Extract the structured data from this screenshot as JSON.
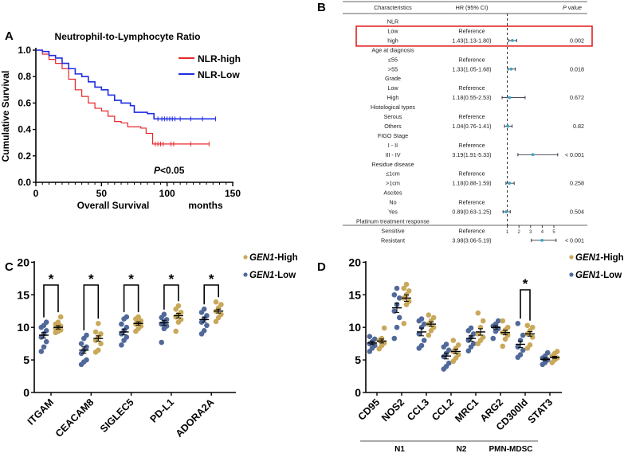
{
  "panels": {
    "a": "A",
    "b": "B",
    "c": "C",
    "d": "D"
  },
  "colors": {
    "nlr_high": "#e8262a",
    "nlr_low": "#1f2de0",
    "gen1_high": "#c9a85a",
    "gen1_low": "#51699a",
    "forest_point": "#3aa6c4",
    "highlight_box": "#e02020"
  },
  "chart_data": [
    {
      "type": "line",
      "subtype": "kaplan-meier",
      "title": "Neutrophil-to-Lymphocyte Ratio",
      "xlabel": "Overall Survival",
      "xunit": "months",
      "ylabel": "Cumulative Survival",
      "xlim": [
        0,
        150
      ],
      "ylim": [
        0,
        1.0
      ],
      "xticks": [
        "0",
        "50",
        "100",
        "150"
      ],
      "yticks": [
        "0.0",
        "0.2",
        "0.4",
        "0.6",
        "0.8",
        "1.0"
      ],
      "legend_position": "top-right",
      "annotation": {
        "italic": "P",
        "rest": "<0.05"
      },
      "series": [
        {
          "name": "NLR-high",
          "steps": [
            [
              0,
              1.0
            ],
            [
              5,
              0.97
            ],
            [
              10,
              0.93
            ],
            [
              15,
              0.9
            ],
            [
              20,
              0.86
            ],
            [
              25,
              0.78
            ],
            [
              30,
              0.7
            ],
            [
              35,
              0.65
            ],
            [
              40,
              0.6
            ],
            [
              45,
              0.56
            ],
            [
              50,
              0.54
            ],
            [
              55,
              0.5
            ],
            [
              60,
              0.46
            ],
            [
              65,
              0.45
            ],
            [
              70,
              0.42
            ],
            [
              80,
              0.41
            ],
            [
              84,
              0.37
            ],
            [
              89,
              0.29
            ],
            [
              132,
              0.29
            ]
          ],
          "censored": [
            91,
            93,
            95,
            97,
            103,
            105,
            118,
            132
          ]
        },
        {
          "name": "NLR-Low",
          "steps": [
            [
              0,
              1.0
            ],
            [
              5,
              0.99
            ],
            [
              10,
              0.96
            ],
            [
              15,
              0.94
            ],
            [
              20,
              0.9
            ],
            [
              25,
              0.86
            ],
            [
              30,
              0.82
            ],
            [
              35,
              0.8
            ],
            [
              40,
              0.76
            ],
            [
              45,
              0.72
            ],
            [
              50,
              0.7
            ],
            [
              55,
              0.66
            ],
            [
              60,
              0.62
            ],
            [
              65,
              0.6
            ],
            [
              72,
              0.58
            ],
            [
              75,
              0.53
            ],
            [
              85,
              0.52
            ],
            [
              90,
              0.48
            ],
            [
              137,
              0.48
            ]
          ],
          "censored": [
            93,
            96,
            98,
            100,
            102,
            104,
            106,
            110,
            118,
            127,
            137
          ]
        }
      ]
    },
    {
      "type": "table",
      "subtype": "forest-plot",
      "headers": {
        "characteristics": "Characteristics",
        "hr": "HR (95% CI)",
        "p_italic": "P",
        "p_rest": " value"
      },
      "xticks": [
        "1",
        "2",
        "3",
        "4",
        "5"
      ],
      "reference_line": 1,
      "highlighted_rows": [
        1,
        2
      ],
      "rows": [
        {
          "label": "NLR",
          "hr_text": "",
          "p": ""
        },
        {
          "label": "Low",
          "hr_text": "Reference",
          "p": ""
        },
        {
          "label": "high",
          "hr_text": "1.43(1.13-1.80)",
          "p": "0.002",
          "hr": 1.43,
          "lo": 1.13,
          "hi": 1.8
        },
        {
          "label": "Age at diagnosis",
          "hr_text": "",
          "p": ""
        },
        {
          "label": "≤55",
          "hr_text": "Reference",
          "p": ""
        },
        {
          "label": ">55",
          "hr_text": "1.33(1.05-1.68)",
          "p": "0.018",
          "hr": 1.33,
          "lo": 1.05,
          "hi": 1.68
        },
        {
          "label": "Grade",
          "hr_text": "",
          "p": ""
        },
        {
          "label": "Low",
          "hr_text": "Reference",
          "p": ""
        },
        {
          "label": "High",
          "hr_text": "1.18(0.55-2.53)",
          "p": "0.672",
          "hr": 1.18,
          "lo": 0.55,
          "hi": 2.53
        },
        {
          "label": "Histological types",
          "hr_text": "",
          "p": ""
        },
        {
          "label": "Serous",
          "hr_text": "Reference",
          "p": ""
        },
        {
          "label": "Others",
          "hr_text": "1.04(0.76-1.41)",
          "p": "0.82",
          "hr": 1.04,
          "lo": 0.76,
          "hi": 1.41
        },
        {
          "label": "FIGO Stage",
          "hr_text": "",
          "p": ""
        },
        {
          "label": "I - II",
          "hr_text": "Reference",
          "p": ""
        },
        {
          "label": "III - IV",
          "hr_text": "3.19(1.91-5.33)",
          "p": "< 0.001",
          "hr": 3.19,
          "lo": 1.91,
          "hi": 5.33
        },
        {
          "label": "Residue disease",
          "hr_text": "",
          "p": ""
        },
        {
          "label": "≤1cm",
          "hr_text": "Reference",
          "p": ""
        },
        {
          "label": ">1cm",
          "hr_text": "1.18(0.88-1.59)",
          "p": "0.258",
          "hr": 1.18,
          "lo": 0.88,
          "hi": 1.59
        },
        {
          "label": "Ascites",
          "hr_text": "",
          "p": ""
        },
        {
          "label": "No",
          "hr_text": "Reference",
          "p": ""
        },
        {
          "label": "Yes",
          "hr_text": "0.89(0.63-1.25)",
          "p": "0.504",
          "hr": 0.89,
          "lo": 0.63,
          "hi": 1.25
        },
        {
          "label": "Platinum treatment response",
          "hr_text": "",
          "p": ""
        },
        {
          "label": "Sensitive",
          "hr_text": "Reference",
          "p": ""
        },
        {
          "label": "Resistant",
          "hr_text": "3.98(3.06-5.19)",
          "p": "< 0.001",
          "hr": 3.98,
          "lo": 3.06,
          "hi": 5.19
        }
      ]
    },
    {
      "type": "scatter",
      "subtype": "dot-plot-mean-sem",
      "ylim": [
        0,
        20
      ],
      "yticks": [
        "0",
        "5",
        "10",
        "15",
        "20"
      ],
      "legend_position": "top-right",
      "legend": [
        {
          "italic": "GEN1",
          "rest": "-High"
        },
        {
          "italic": "GEN1",
          "rest": "-Low"
        }
      ],
      "significance_mark": "*",
      "categories": [
        "ITGAM",
        "CEACAM8",
        "SIGLEC5",
        "PD-L1",
        "ADORA2A"
      ],
      "significant": [
        true,
        true,
        true,
        true,
        true
      ],
      "low": [
        {
          "mean": 8.8,
          "sem": 0.45,
          "points": [
            6.3,
            7.0,
            7.8,
            8.5,
            9.0,
            9.5,
            10.0,
            10.3,
            10.8
          ]
        },
        {
          "mean": 6.5,
          "sem": 0.5,
          "points": [
            4.3,
            4.7,
            5.0,
            6.0,
            6.5,
            7.0,
            7.5,
            8.3,
            8.8
          ]
        },
        {
          "mean": 9.3,
          "sem": 0.45,
          "points": [
            7.3,
            8.0,
            8.5,
            9.0,
            9.5,
            10.0,
            10.5,
            11.3,
            11.6
          ]
        },
        {
          "mean": 10.7,
          "sem": 0.4,
          "points": [
            7.7,
            9.8,
            10.2,
            10.5,
            10.8,
            11.2,
            11.5,
            12.0
          ]
        },
        {
          "mean": 11.2,
          "sem": 0.4,
          "points": [
            9.0,
            9.5,
            10.3,
            10.8,
            11.3,
            11.8,
            12.3,
            12.8
          ]
        }
      ],
      "high": [
        {
          "mean": 10.0,
          "sem": 0.25,
          "points": [
            9.2,
            9.4,
            9.6,
            9.8,
            10.0,
            10.2,
            10.5,
            10.8,
            11.6
          ]
        },
        {
          "mean": 8.3,
          "sem": 0.4,
          "points": [
            6.2,
            6.5,
            7.5,
            8.0,
            8.5,
            9.0,
            9.3,
            10.6
          ]
        },
        {
          "mean": 10.6,
          "sem": 0.25,
          "points": [
            9.4,
            9.8,
            10.2,
            10.5,
            10.8,
            11.0,
            11.3,
            11.6
          ]
        },
        {
          "mean": 11.8,
          "sem": 0.35,
          "points": [
            9.4,
            10.8,
            11.2,
            11.6,
            12.0,
            12.3,
            12.8,
            13.3
          ]
        },
        {
          "mean": 12.5,
          "sem": 0.3,
          "points": [
            10.9,
            11.5,
            12.0,
            12.5,
            13.0,
            13.5,
            13.9
          ]
        }
      ]
    },
    {
      "type": "scatter",
      "subtype": "dot-plot-mean-sem",
      "ylim": [
        0,
        20
      ],
      "yticks": [
        "0",
        "5",
        "10",
        "15",
        "20"
      ],
      "legend_position": "top-right",
      "legend": [
        {
          "italic": "GEN1",
          "rest": "-High"
        },
        {
          "italic": "GEN1",
          "rest": "-Low"
        }
      ],
      "significance_mark": "*",
      "categories": [
        "CD95",
        "NOS2",
        "CCL3",
        "CCL2",
        "MRC1",
        "ARG2",
        "CD300ld",
        "STAT3"
      ],
      "significant": [
        false,
        false,
        false,
        false,
        false,
        false,
        true,
        false
      ],
      "groups": [
        {
          "label": "N1",
          "from": 0,
          "to": 2
        },
        {
          "label": "N2",
          "from": 3,
          "to": 4
        },
        {
          "label": "PMN-MDSC",
          "from": 5,
          "to": 6
        }
      ],
      "low": [
        {
          "mean": 7.6,
          "sem": 0.25,
          "points": [
            6.3,
            6.8,
            7.2,
            7.5,
            7.8,
            8.2,
            8.6
          ]
        },
        {
          "mean": 13.0,
          "sem": 0.7,
          "points": [
            8.3,
            10.0,
            11.5,
            12.5,
            13.5,
            14.5,
            15.0,
            16.0
          ]
        },
        {
          "mean": 9.3,
          "sem": 0.6,
          "points": [
            6.8,
            7.2,
            8.0,
            9.0,
            10.0,
            10.5,
            11.0,
            11.3
          ]
        },
        {
          "mean": 5.6,
          "sem": 0.45,
          "points": [
            3.6,
            4.0,
            4.5,
            5.5,
            6.0,
            6.5,
            7.0,
            7.4
          ]
        },
        {
          "mean": 8.3,
          "sem": 0.4,
          "points": [
            6.4,
            7.0,
            7.5,
            8.0,
            8.5,
            9.0,
            9.5,
            9.9
          ]
        },
        {
          "mean": 10.0,
          "sem": 0.25,
          "points": [
            8.3,
            9.4,
            9.8,
            10.2,
            10.5,
            11.0
          ]
        },
        {
          "mean": 7.4,
          "sem": 0.5,
          "points": [
            5.4,
            5.8,
            6.5,
            7.0,
            8.0,
            8.8,
            10.6
          ]
        },
        {
          "mean": 5.1,
          "sem": 0.2,
          "points": [
            4.3,
            4.6,
            5.0,
            5.3,
            5.6,
            6.1
          ]
        }
      ],
      "high": [
        {
          "mean": 7.9,
          "sem": 0.3,
          "points": [
            6.7,
            7.2,
            7.6,
            8.0,
            8.3,
            9.9
          ]
        },
        {
          "mean": 14.5,
          "sem": 0.5,
          "points": [
            10.6,
            13.5,
            14.0,
            14.5,
            15.0,
            15.6,
            16.0,
            16.6
          ]
        },
        {
          "mean": 10.5,
          "sem": 0.35,
          "points": [
            8.8,
            9.5,
            10.0,
            10.5,
            11.0,
            11.5,
            11.9
          ]
        },
        {
          "mean": 6.3,
          "sem": 0.35,
          "points": [
            4.8,
            5.3,
            5.8,
            6.3,
            6.8,
            7.3,
            8.0
          ]
        },
        {
          "mean": 9.3,
          "sem": 0.5,
          "points": [
            7.5,
            8.0,
            8.5,
            9.0,
            10.0,
            11.0,
            12.2
          ]
        },
        {
          "mean": 9.2,
          "sem": 0.35,
          "points": [
            7.1,
            8.2,
            8.8,
            9.2,
            9.6,
            10.0,
            11.0
          ]
        },
        {
          "mean": 9.0,
          "sem": 0.35,
          "points": [
            6.8,
            7.3,
            8.5,
            9.0,
            9.5,
            10.0,
            10.3
          ]
        },
        {
          "mean": 5.4,
          "sem": 0.15,
          "points": [
            4.6,
            5.0,
            5.3,
            5.6,
            6.0,
            6.3
          ]
        }
      ]
    }
  ]
}
